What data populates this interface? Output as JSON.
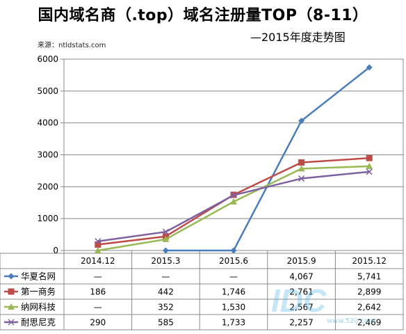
{
  "title": "国内域名商（.top）域名注册量TOP（8-11）",
  "subtitle": "—2015年度走势图",
  "source": "来源：ntldstats.com",
  "watermark": {
    "logo": "IDC",
    "site": "www.52ij.com"
  },
  "colors": {
    "华夏名网": "#4a7ebb",
    "第一商务": "#be4b48",
    "纳网科技": "#98b954",
    "耐思尼克": "#7d60a0"
  },
  "chart_data": {
    "type": "line",
    "categories": [
      "2014.12",
      "2015.3",
      "2015.6",
      "2015.9",
      "2015.12"
    ],
    "ylim": [
      0,
      6000
    ],
    "yticks": [
      0,
      1000,
      2000,
      3000,
      4000,
      5000,
      6000
    ],
    "grid": true,
    "legend": "table-below",
    "series": [
      {
        "name": "华夏名网",
        "marker": "diamond",
        "values": [
          null,
          0,
          0,
          4067,
          5741
        ],
        "labels": [
          "—",
          "—",
          "—",
          "4,067",
          "5,741"
        ]
      },
      {
        "name": "第一商务",
        "marker": "square",
        "values": [
          186,
          442,
          1746,
          2761,
          2899
        ],
        "labels": [
          "186",
          "442",
          "1,746",
          "2,761",
          "2,899"
        ]
      },
      {
        "name": "纳网科技",
        "marker": "triangle",
        "values": [
          0,
          352,
          1530,
          2567,
          2642
        ],
        "labels": [
          "—",
          "352",
          "1,530",
          "2,567",
          "2,642"
        ]
      },
      {
        "name": "耐思尼克",
        "marker": "x",
        "values": [
          290,
          585,
          1733,
          2257,
          2469
        ],
        "labels": [
          "290",
          "585",
          "1,733",
          "2,257",
          "2,469"
        ]
      }
    ]
  }
}
